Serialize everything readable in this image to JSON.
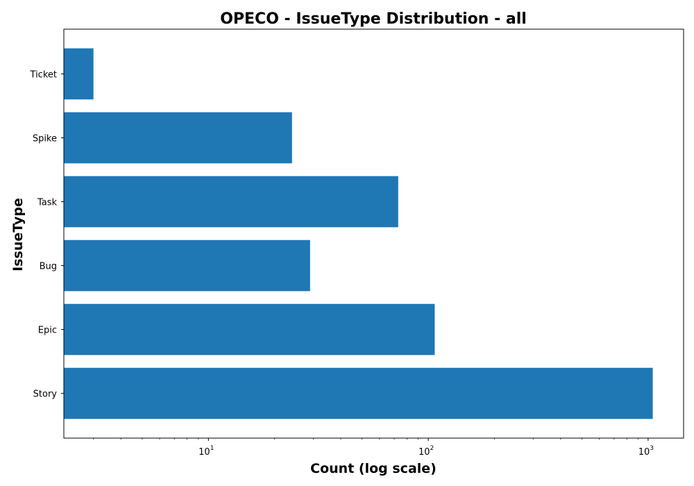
{
  "chart_data": {
    "type": "bar",
    "orientation": "horizontal",
    "title": "OPECO - IssueType Distribution - all",
    "xlabel": "Count (log scale)",
    "ylabel": "IssueType",
    "x_scale": "log",
    "xlim": [
      2.2,
      1450
    ],
    "x_ticks": [
      {
        "base": "10",
        "exp": "1",
        "value": 10
      },
      {
        "base": "10",
        "exp": "2",
        "value": 100
      },
      {
        "base": "10",
        "exp": "3",
        "value": 1000
      }
    ],
    "categories": [
      "Story",
      "Epic",
      "Bug",
      "Task",
      "Spike",
      "Ticket"
    ],
    "values": [
      1050,
      107,
      29,
      73,
      24,
      3
    ],
    "bar_color": "#1f77b4",
    "grid": false,
    "legend": "none"
  }
}
